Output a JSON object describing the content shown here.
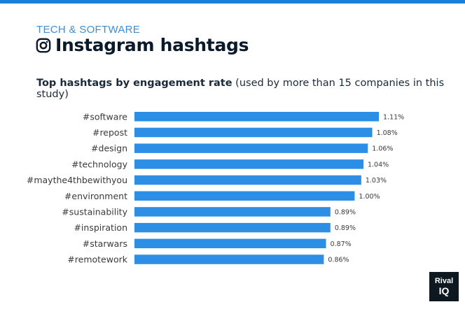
{
  "header": {
    "category": "TECH & SOFTWARE",
    "title": "Instagram hashtags",
    "subtitle_strong": "Top hashtags by engagement rate",
    "subtitle_rest": " (used by more than 15 companies in this study)"
  },
  "icon": "instagram-icon",
  "brand": {
    "line1": "Rival",
    "line2": "IQ"
  },
  "colors": {
    "accent": "#1a7fd6",
    "bar": "#2d8ee6",
    "eyebrow": "#3a8ed8",
    "text_dark": "#0a1a2a",
    "label": "#3a3a3a"
  },
  "chart_data": {
    "type": "bar",
    "orientation": "horizontal",
    "categories": [
      "#software",
      "#repost",
      "#design",
      "#technology",
      "#maythe4thbewithyou",
      "#environment",
      "#sustainability",
      "#inspiration",
      "#starwars",
      "#remotework"
    ],
    "values": [
      1.11,
      1.08,
      1.06,
      1.04,
      1.03,
      1.0,
      0.89,
      0.89,
      0.87,
      0.86
    ],
    "value_labels": [
      "1.11%",
      "1.08%",
      "1.06%",
      "1.04%",
      "1.03%",
      "1.00%",
      "0.89%",
      "0.89%",
      "0.87%",
      "0.86%"
    ],
    "title": "Top hashtags by engagement rate",
    "xlabel": "",
    "ylabel": "",
    "xlim": [
      0,
      1.11
    ],
    "grid": false,
    "legend": "none"
  }
}
